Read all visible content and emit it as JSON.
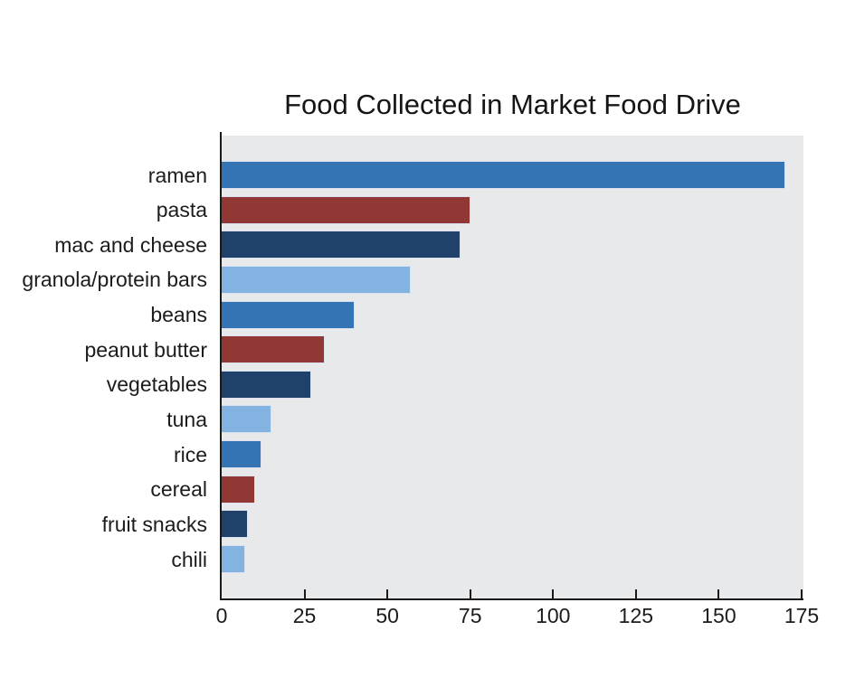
{
  "chart_data": {
    "type": "bar",
    "orientation": "horizontal",
    "title": "Food Collected in Market Food Drive",
    "categories": [
      "ramen",
      "pasta",
      "mac and cheese",
      "granola/protein bars",
      "beans",
      "peanut butter",
      "vegetables",
      "tuna",
      "rice",
      "cereal",
      "fruit snacks",
      "chili"
    ],
    "values": [
      170,
      75,
      72,
      57,
      40,
      31,
      27,
      15,
      12,
      10,
      8,
      7
    ],
    "color_cycle": [
      "#3474b5",
      "#913835",
      "#204169",
      "#83b3e0"
    ],
    "xticks": [
      0,
      25,
      50,
      75,
      100,
      125,
      150,
      175
    ],
    "xlim": [
      0,
      175
    ],
    "xlabel": "",
    "ylabel": "",
    "grid": false,
    "legend": "none",
    "plot_background": "#e8e9eb",
    "spine_color": "#1a1a1a",
    "bar_edge_color": "#d9e2ee"
  }
}
